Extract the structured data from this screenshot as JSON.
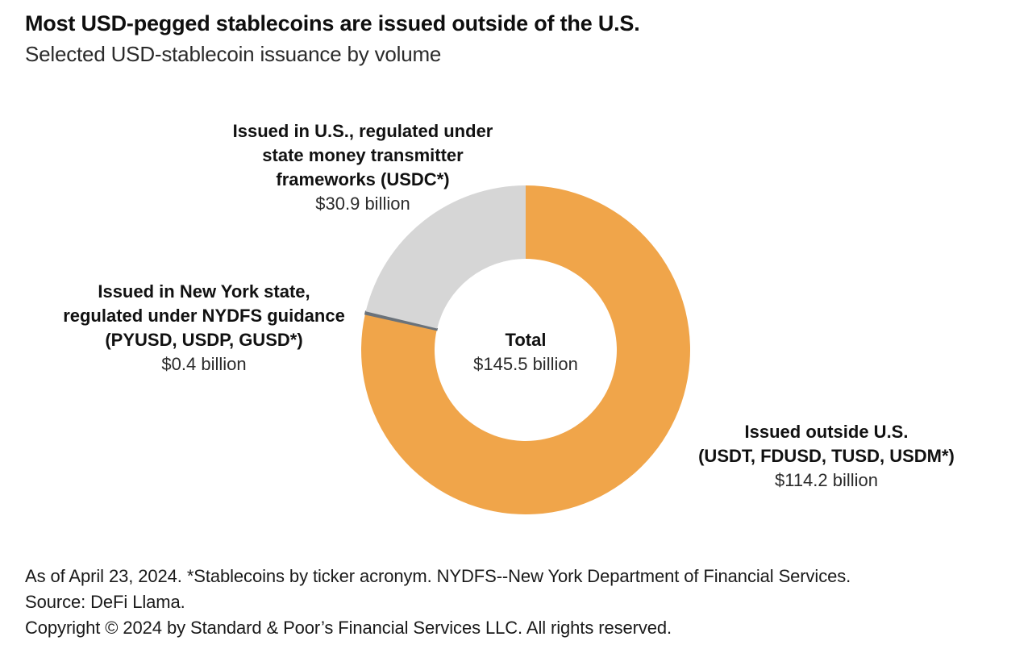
{
  "header": {
    "title": "Most USD-pegged stablecoins are issued outside of the U.S.",
    "subtitle": "Selected USD-stablecoin issuance by volume"
  },
  "chart_data": {
    "type": "pie",
    "subtype": "donut",
    "unit": "USD billions",
    "start_angle_deg": 0,
    "direction": "clockwise",
    "legend": "none",
    "total_value": 145.5,
    "center_label": {
      "title": "Total",
      "value": "$145.5 billion"
    },
    "segments": [
      {
        "id": "outside-us",
        "label_lines": [
          "Issued outside U.S.",
          "(USDT, FDUSD, TUSD, USDM*)"
        ],
        "value": 114.2,
        "value_label": "$114.2 billion",
        "color": "#F0A54A"
      },
      {
        "id": "new-york-nydfs",
        "label_lines": [
          "Issued in New York state,",
          "regulated under NYDFS guidance",
          "(PYUSD, USDP, GUSD*)"
        ],
        "value": 0.4,
        "value_label": "$0.4 billion",
        "color": "#6A727A"
      },
      {
        "id": "us-state-money-transmitter",
        "label_lines": [
          "Issued in U.S., regulated under",
          "state money transmitter",
          "frameworks (USDC*)"
        ],
        "value": 30.9,
        "value_label": "$30.9 billion",
        "color": "#D6D6D6"
      }
    ],
    "colors": {
      "background": "#FFFFFF",
      "text": "#1A1A1A"
    }
  },
  "footer": {
    "lines": [
      "As of April 23, 2024. *Stablecoins by ticker acronym. NYDFS--New York Department of Financial Services.",
      "Source: DeFi Llama.",
      "Copyright © 2024 by Standard & Poor’s Financial Services LLC. All rights reserved."
    ]
  }
}
